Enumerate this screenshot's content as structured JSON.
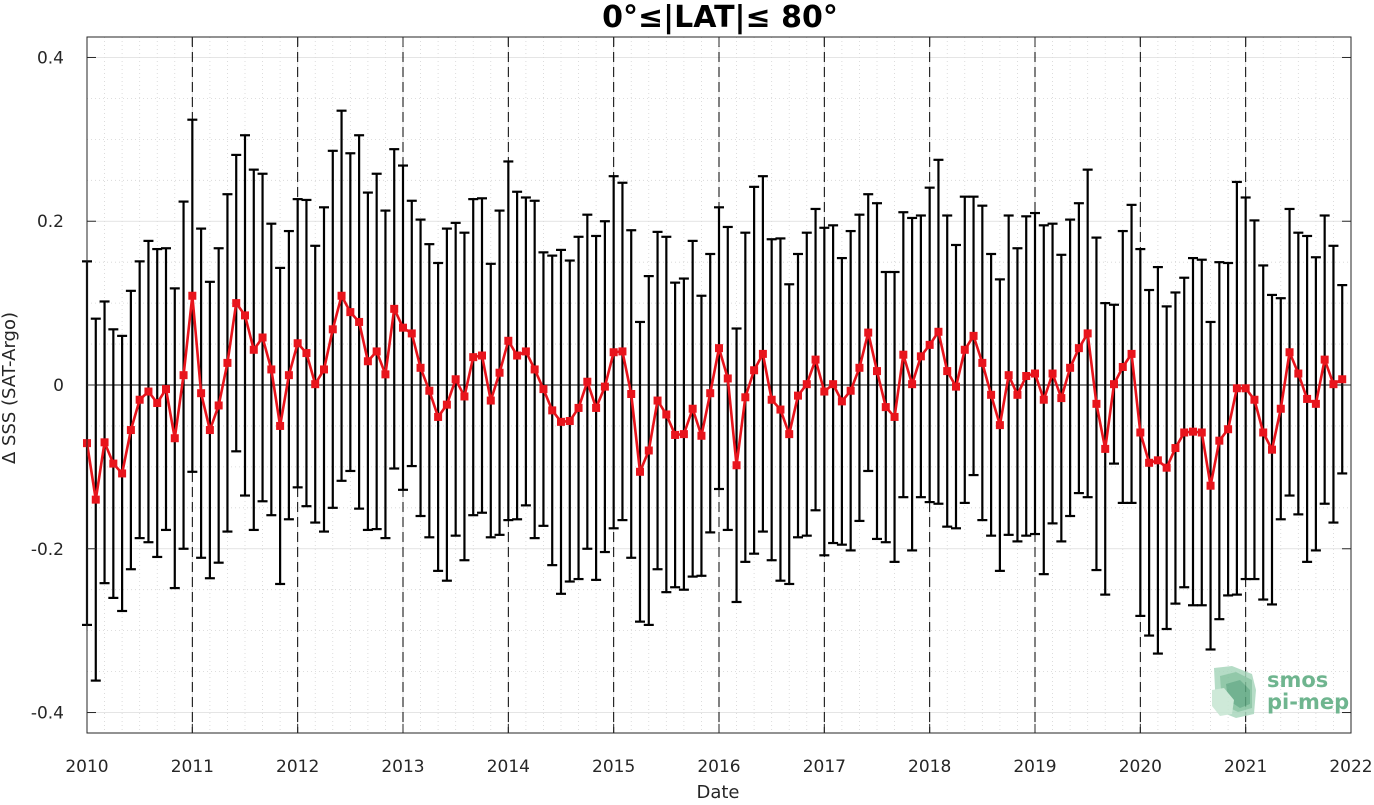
{
  "chart_data": {
    "type": "line",
    "title": "0°≤|LAT|≤ 80°",
    "xlabel": "Date",
    "ylabel": "Δ SSS (SAT-Argo)",
    "xlim": [
      "2010-01",
      "2022-01"
    ],
    "ylim": [
      -0.425,
      0.425
    ],
    "xticks": [
      "2010",
      "2011",
      "2012",
      "2013",
      "2014",
      "2015",
      "2016",
      "2017",
      "2018",
      "2019",
      "2020",
      "2021",
      "2022"
    ],
    "yticks": [
      {
        "value": 0.4,
        "label": "0.4"
      },
      {
        "value": 0.2,
        "label": "0.2"
      },
      {
        "value": 0,
        "label": "0"
      },
      {
        "value": -0.2,
        "label": "-0.2"
      },
      {
        "value": -0.4,
        "label": "-0.4"
      }
    ],
    "grid": true,
    "year_boundaries_dashed": [
      "2011",
      "2012",
      "2013",
      "2014",
      "2015",
      "2016",
      "2017",
      "2018",
      "2019",
      "2020",
      "2021"
    ],
    "series": [
      {
        "color": "#e8141c",
        "errorbar_color": "#000000",
        "marker": "square",
        "x": [
          "2010-01",
          "2010-02",
          "2010-03",
          "2010-04",
          "2010-05",
          "2010-06",
          "2010-07",
          "2010-08",
          "2010-09",
          "2010-10",
          "2010-11",
          "2010-12",
          "2011-01",
          "2011-02",
          "2011-03",
          "2011-04",
          "2011-05",
          "2011-06",
          "2011-07",
          "2011-08",
          "2011-09",
          "2011-10",
          "2011-11",
          "2011-12",
          "2012-01",
          "2012-02",
          "2012-03",
          "2012-04",
          "2012-05",
          "2012-06",
          "2012-07",
          "2012-08",
          "2012-09",
          "2012-10",
          "2012-11",
          "2012-12",
          "2013-01",
          "2013-02",
          "2013-03",
          "2013-04",
          "2013-05",
          "2013-06",
          "2013-07",
          "2013-08",
          "2013-09",
          "2013-10",
          "2013-11",
          "2013-12",
          "2014-01",
          "2014-02",
          "2014-03",
          "2014-04",
          "2014-05",
          "2014-06",
          "2014-07",
          "2014-08",
          "2014-09",
          "2014-10",
          "2014-11",
          "2014-12",
          "2015-01",
          "2015-02",
          "2015-03",
          "2015-04",
          "2015-05",
          "2015-06",
          "2015-07",
          "2015-08",
          "2015-09",
          "2015-10",
          "2015-11",
          "2015-12",
          "2016-01",
          "2016-02",
          "2016-03",
          "2016-04",
          "2016-05",
          "2016-06",
          "2016-07",
          "2016-08",
          "2016-09",
          "2016-10",
          "2016-11",
          "2016-12",
          "2017-01",
          "2017-02",
          "2017-03",
          "2017-04",
          "2017-05",
          "2017-06",
          "2017-07",
          "2017-08",
          "2017-09",
          "2017-10",
          "2017-11",
          "2017-12",
          "2018-01",
          "2018-02",
          "2018-03",
          "2018-04",
          "2018-05",
          "2018-06",
          "2018-07",
          "2018-08",
          "2018-09",
          "2018-10",
          "2018-11",
          "2018-12",
          "2019-01",
          "2019-02",
          "2019-03",
          "2019-04",
          "2019-05",
          "2019-06",
          "2019-07",
          "2019-08",
          "2019-09",
          "2019-10",
          "2019-11",
          "2019-12",
          "2020-01",
          "2020-02",
          "2020-03",
          "2020-04",
          "2020-05",
          "2020-06",
          "2020-07",
          "2020-08",
          "2020-09",
          "2020-10",
          "2020-11",
          "2020-12",
          "2021-01",
          "2021-02",
          "2021-03",
          "2021-04",
          "2021-05",
          "2021-06",
          "2021-07",
          "2021-08",
          "2021-09",
          "2021-10",
          "2021-11",
          "2021-12"
        ],
        "y": [
          -0.071,
          -0.14,
          -0.07,
          -0.096,
          -0.108,
          -0.055,
          -0.018,
          -0.008,
          -0.022,
          -0.005,
          -0.065,
          0.012,
          0.109,
          -0.01,
          -0.055,
          -0.025,
          0.027,
          0.1,
          0.085,
          0.043,
          0.058,
          0.019,
          -0.05,
          0.012,
          0.051,
          0.039,
          0.001,
          0.019,
          0.068,
          0.109,
          0.089,
          0.077,
          0.029,
          0.041,
          0.013,
          0.093,
          0.07,
          0.063,
          0.021,
          -0.007,
          -0.039,
          -0.024,
          0.007,
          -0.014,
          0.034,
          0.036,
          -0.019,
          0.015,
          0.054,
          0.036,
          0.041,
          0.019,
          -0.005,
          -0.031,
          -0.045,
          -0.044,
          -0.028,
          0.004,
          -0.028,
          -0.002,
          0.04,
          0.041,
          -0.011,
          -0.106,
          -0.08,
          -0.019,
          -0.036,
          -0.061,
          -0.06,
          -0.029,
          -0.062,
          -0.01,
          0.045,
          0.008,
          -0.098,
          -0.015,
          0.018,
          0.038,
          -0.018,
          -0.03,
          -0.06,
          -0.013,
          0.001,
          0.031,
          -0.008,
          0.001,
          -0.02,
          -0.007,
          0.021,
          0.064,
          0.017,
          -0.027,
          -0.039,
          0.037,
          0.001,
          0.035,
          0.049,
          0.065,
          0.017,
          -0.002,
          0.043,
          0.06,
          0.027,
          -0.012,
          -0.049,
          0.012,
          -0.012,
          0.011,
          0.014,
          -0.018,
          0.014,
          -0.016,
          0.021,
          0.045,
          0.063,
          -0.023,
          -0.078,
          0.001,
          0.022,
          0.038,
          -0.058,
          -0.095,
          -0.092,
          -0.101,
          -0.077,
          -0.058,
          -0.057,
          -0.058,
          -0.123,
          -0.068,
          -0.054,
          -0.004,
          -0.004,
          -0.018,
          -0.058,
          -0.079,
          -0.029,
          0.04,
          0.014,
          -0.017,
          -0.023,
          0.031,
          0.001,
          0.007
        ],
        "err": [
          0.222,
          0.221,
          0.172,
          0.164,
          0.168,
          0.17,
          0.169,
          0.184,
          0.188,
          0.172,
          0.183,
          0.212,
          0.215,
          0.201,
          0.181,
          0.192,
          0.206,
          0.181,
          0.22,
          0.22,
          0.2,
          0.178,
          0.193,
          0.176,
          0.176,
          0.187,
          0.169,
          0.198,
          0.218,
          0.226,
          0.194,
          0.228,
          0.206,
          0.217,
          0.2,
          0.195,
          0.198,
          0.162,
          0.181,
          0.179,
          0.188,
          0.215,
          0.191,
          0.2,
          0.193,
          0.192,
          0.167,
          0.198,
          0.219,
          0.2,
          0.188,
          0.206,
          0.167,
          0.189,
          0.21,
          0.196,
          0.209,
          0.204,
          0.21,
          0.202,
          0.215,
          0.206,
          0.2,
          0.183,
          0.213,
          0.206,
          0.217,
          0.186,
          0.19,
          0.205,
          0.171,
          0.17,
          0.172,
          0.185,
          0.167,
          0.201,
          0.224,
          0.217,
          0.196,
          0.209,
          0.183,
          0.173,
          0.185,
          0.184,
          0.2,
          0.194,
          0.175,
          0.195,
          0.187,
          0.169,
          0.205,
          0.165,
          0.177,
          0.174,
          0.203,
          0.172,
          0.192,
          0.21,
          0.19,
          0.173,
          0.187,
          0.17,
          0.192,
          0.172,
          0.178,
          0.195,
          0.179,
          0.195,
          0.196,
          0.213,
          0.183,
          0.175,
          0.181,
          0.177,
          0.2,
          0.203,
          0.178,
          0.097,
          0.166,
          0.182,
          0.224,
          0.211,
          0.236,
          0.197,
          0.19,
          0.189,
          0.212,
          0.211,
          0.2,
          0.218,
          0.203,
          0.252,
          0.233,
          0.219,
          0.204,
          0.189,
          0.135,
          0.175,
          0.172,
          0.199,
          0.179,
          0.176,
          0.169,
          0.115
        ]
      }
    ]
  },
  "logo": {
    "line1": "smos",
    "line2": "pi-mep",
    "color": "#6fb58f"
  }
}
